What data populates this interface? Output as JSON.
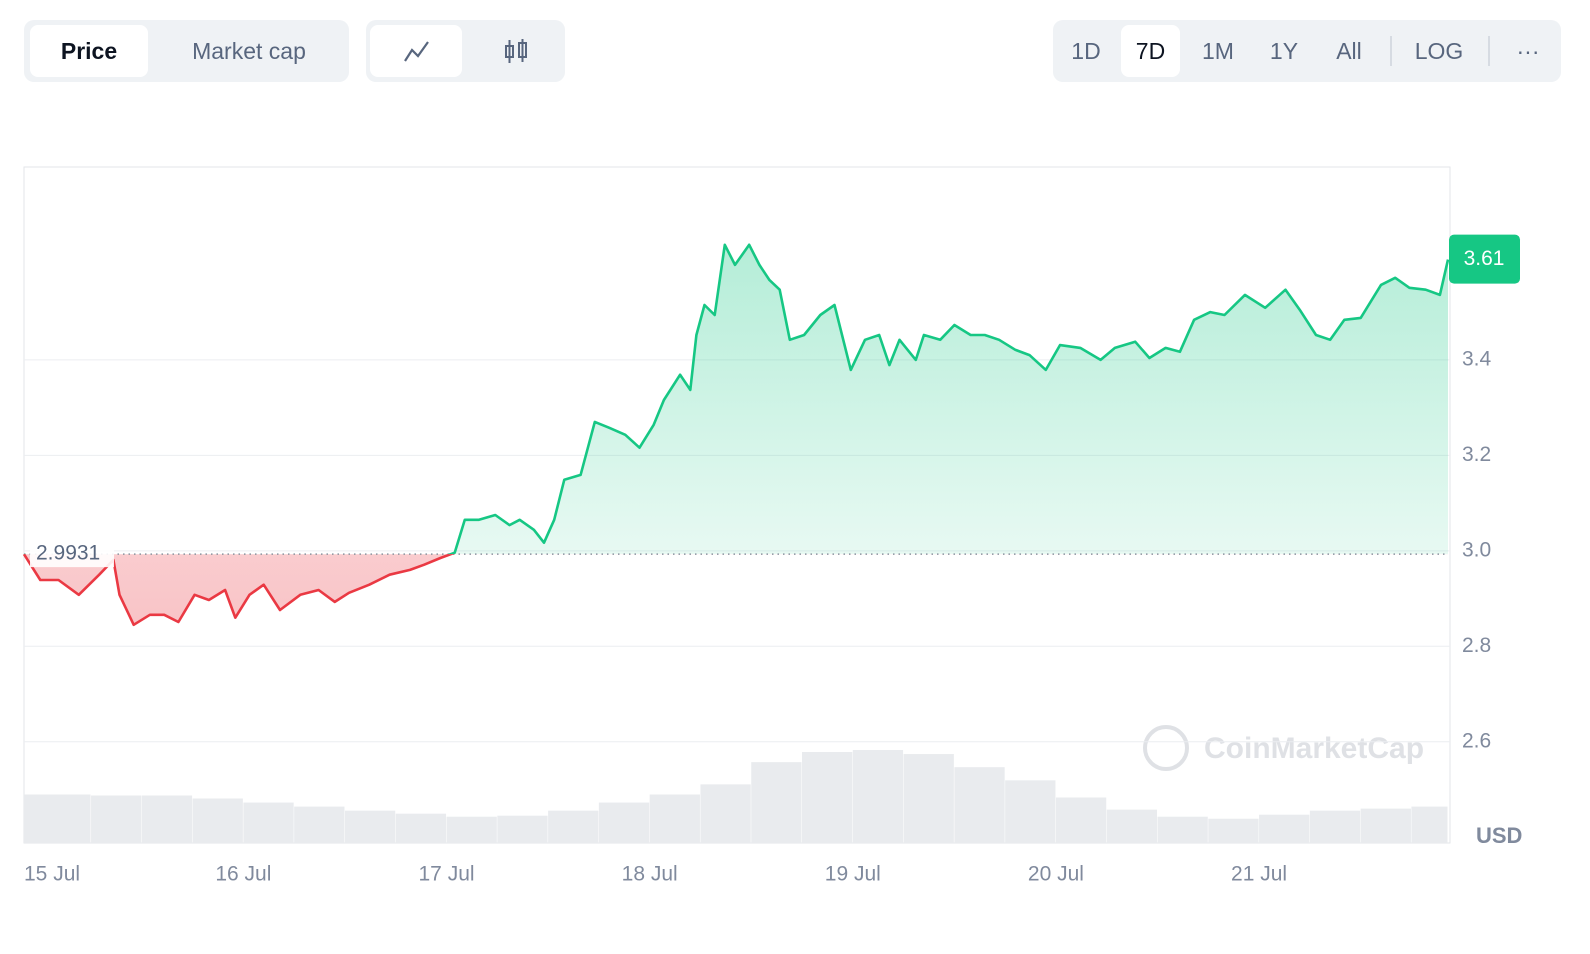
{
  "toolbar": {
    "tabs": [
      "Price",
      "Market cap"
    ],
    "ranges": [
      "1D",
      "7D",
      "1M",
      "1Y",
      "All"
    ],
    "scale": "LOG",
    "more": "···"
  },
  "chart_data": {
    "type": "line",
    "x": [
      -0.08,
      0.0,
      0.09,
      0.19,
      0.29,
      0.36,
      0.39,
      0.46,
      0.54,
      0.61,
      0.68,
      0.76,
      0.83,
      0.91,
      0.96,
      1.03,
      1.1,
      1.18,
      1.28,
      1.37,
      1.45,
      1.52,
      1.62,
      1.72,
      1.82,
      1.89,
      1.97,
      2.04,
      2.09,
      2.16,
      2.24,
      2.31,
      2.36,
      2.43,
      2.48,
      2.53,
      2.58,
      2.66,
      2.73,
      2.8,
      2.88,
      2.95,
      3.02,
      3.07,
      3.15,
      3.2,
      3.23,
      3.27,
      3.32,
      3.37,
      3.42,
      3.49,
      3.54,
      3.59,
      3.64,
      3.69,
      3.76,
      3.84,
      3.91,
      3.99,
      4.06,
      4.13,
      4.18,
      4.23,
      4.31,
      4.35,
      4.43,
      4.5,
      4.58,
      4.65,
      4.72,
      4.8,
      4.87,
      4.95,
      5.02,
      5.12,
      5.22,
      5.29,
      5.39,
      5.46,
      5.54,
      5.61,
      5.68,
      5.76,
      5.83,
      5.93,
      6.03,
      6.13,
      6.2,
      6.28,
      6.35,
      6.42,
      6.5,
      6.6,
      6.67,
      6.74,
      6.82,
      6.89,
      6.93
    ],
    "values": [
      2.993,
      2.939,
      2.939,
      2.908,
      2.95,
      2.981,
      2.908,
      2.845,
      2.866,
      2.866,
      2.851,
      2.908,
      2.897,
      2.918,
      2.86,
      2.908,
      2.929,
      2.876,
      2.908,
      2.918,
      2.893,
      2.912,
      2.929,
      2.95,
      2.96,
      2.971,
      2.985,
      2.996,
      3.065,
      3.065,
      3.075,
      3.054,
      3.065,
      3.044,
      3.017,
      3.065,
      3.149,
      3.159,
      3.27,
      3.258,
      3.243,
      3.216,
      3.264,
      3.316,
      3.369,
      3.337,
      3.452,
      3.515,
      3.494,
      3.641,
      3.599,
      3.641,
      3.599,
      3.567,
      3.547,
      3.442,
      3.452,
      3.494,
      3.515,
      3.379,
      3.442,
      3.452,
      3.389,
      3.442,
      3.4,
      3.452,
      3.442,
      3.473,
      3.452,
      3.452,
      3.442,
      3.421,
      3.41,
      3.379,
      3.431,
      3.425,
      3.4,
      3.425,
      3.438,
      3.404,
      3.425,
      3.417,
      3.484,
      3.5,
      3.494,
      3.536,
      3.509,
      3.547,
      3.505,
      3.452,
      3.442,
      3.484,
      3.488,
      3.557,
      3.572,
      3.551,
      3.547,
      3.536,
      3.61
    ],
    "baseline": 2.9931,
    "up_color": "#16c784",
    "down_color": "#ea3943",
    "volume": {
      "x": [
        0,
        0.25,
        0.5,
        0.75,
        1,
        1.25,
        1.5,
        1.75,
        2,
        2.25,
        2.5,
        2.75,
        3,
        3.25,
        3.5,
        3.75,
        4,
        4.25,
        4.5,
        4.75,
        5,
        5.25,
        5.5,
        5.75,
        6,
        6.25,
        6.5,
        6.75
      ],
      "values": [
        48,
        47,
        47,
        44,
        40,
        36,
        32,
        29,
        26,
        27,
        32,
        40,
        48,
        58,
        80,
        90,
        92,
        88,
        75,
        62,
        45,
        33,
        26,
        24,
        28,
        32,
        34,
        36
      ],
      "color": "#e9ebee"
    },
    "xlim": [
      -0.08,
      6.93
    ],
    "xticks": [
      {
        "value": 0,
        "label": "15 Jul"
      },
      {
        "value": 1,
        "label": "16 Jul"
      },
      {
        "value": 2,
        "label": "17 Jul"
      },
      {
        "value": 3,
        "label": "18 Jul"
      },
      {
        "value": 4,
        "label": "19 Jul"
      },
      {
        "value": 5,
        "label": "20 Jul"
      },
      {
        "value": 6,
        "label": "21 Jul"
      }
    ],
    "ylim": [
      2.388,
      3.804
    ],
    "yticks": [
      2.6,
      2.8,
      {
        "value": 3,
        "label": "3.0"
      },
      3.2,
      3.4
    ],
    "grid": true,
    "unit_label": "USD",
    "watermark": "CoinMarketCap"
  }
}
